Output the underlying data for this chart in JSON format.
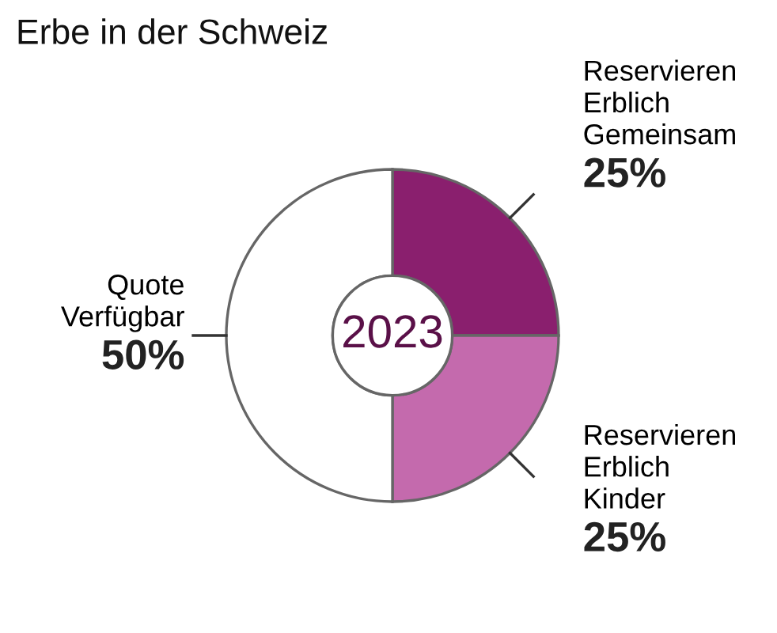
{
  "chart_data": {
    "type": "donut",
    "title": "Erbe in der Schweiz",
    "categories": [
      "Reservieren\nErblich\nGemeinsam",
      "Reservieren\nErblich\nKinder",
      "Quote\nVerfügbar"
    ],
    "values": [
      25,
      25,
      50
    ],
    "value_labels": [
      "25%",
      "25%",
      "50%"
    ],
    "colors": [
      "#8a1f6e",
      "#c46aad",
      "#ffffff"
    ],
    "annotations": [
      "2023"
    ]
  }
}
